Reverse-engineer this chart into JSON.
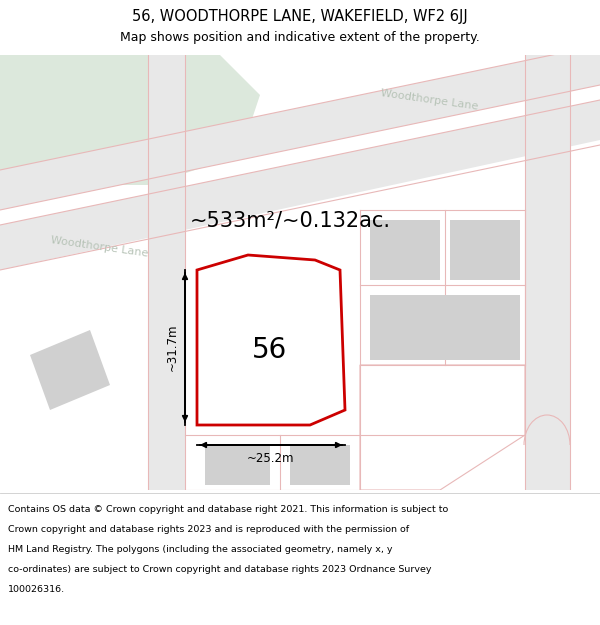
{
  "title_line1": "56, WOODTHORPE LANE, WAKEFIELD, WF2 6JJ",
  "title_line2": "Map shows position and indicative extent of the property.",
  "area_text": "~533m²/~0.132ac.",
  "width_label": "~25.2m",
  "height_label": "~31.7m",
  "number_label": "56",
  "road_label_bottom": "Woodthorpe Lane",
  "road_label_top": "Woodthorpe Lane",
  "copyright_lines": [
    "Contains OS data © Crown copyright and database right 2021. This information is subject to",
    "Crown copyright and database rights 2023 and is reproduced with the permission of",
    "HM Land Registry. The polygons (including the associated geometry, namely x, y",
    "co-ordinates) are subject to Crown copyright and database rights 2023 Ordnance Survey",
    "100026316."
  ],
  "bg_map_color": "#f0f0ed",
  "road_fill": "#e8e8e8",
  "road_stroke": "#e8b8b8",
  "plot_fill": "#ffffff",
  "plot_stroke": "#cc0000",
  "building_fill": "#d0d0d0",
  "green_fill": "#dce8dc",
  "header_bg": "#ffffff",
  "footer_bg": "#ffffff",
  "figsize": [
    6.0,
    6.25
  ],
  "dpi": 100
}
